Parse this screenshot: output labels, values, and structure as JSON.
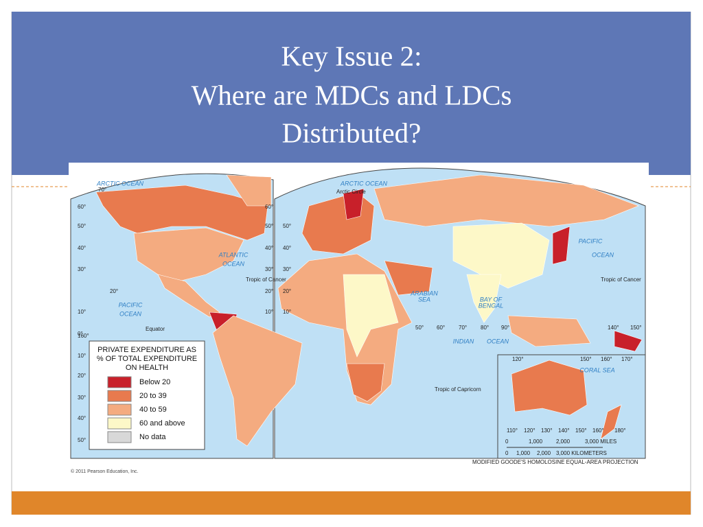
{
  "title": [
    "Key Issue 2:",
    "Where are MDCs and LDCs",
    "Distributed?"
  ],
  "legend": {
    "title": [
      "PRIVATE EXPENDITURE AS",
      "% OF TOTAL EXPENDITURE",
      "ON HEALTH"
    ],
    "items": [
      {
        "label": "Below 20",
        "color": "#c8202a"
      },
      {
        "label": "20 to 39",
        "color": "#e87a4e"
      },
      {
        "label": "40 to 59",
        "color": "#f4ab80"
      },
      {
        "label": "60 and above",
        "color": "#fdf8c8"
      },
      {
        "label": "No data",
        "color": "#d8d8d8"
      }
    ]
  },
  "labels": [
    "ARCTIC OCEAN",
    "ARCTIC OCEAN",
    "Arctic Circle",
    "ATLANTIC",
    "OCEAN",
    "Tropic of Cancer",
    "Tropic of Cancer",
    "PACIFIC",
    "OCEAN",
    "PACIFIC",
    "OCEAN",
    "Equator",
    "ARABIAN",
    "SEA",
    "BAY OF",
    "BENGAL",
    "INDIAN",
    "OCEAN",
    "Tropic of Capricorn",
    "CORAL SEA",
    "60°",
    "50°",
    "40°",
    "30°",
    "20°",
    "10°",
    "0°",
    "10°",
    "20°",
    "30°",
    "40°",
    "50°",
    "60°",
    "50°",
    "40°",
    "30°",
    "20°",
    "10°",
    "50°",
    "40°",
    "30°",
    "20°",
    "10°",
    "50°",
    "60°",
    "70°",
    "80°",
    "90°",
    "140°",
    "150°",
    "120°",
    "150°",
    "160°",
    "170°",
    "110°",
    "120°",
    "130°",
    "140°",
    "150°",
    "160°",
    "180°",
    "160°",
    "70°"
  ],
  "scale": {
    "miles": [
      "0",
      "1,000",
      "2,000",
      "3,000 MILES"
    ],
    "kilometers": [
      "0",
      "1,000",
      "2,000",
      "3,000 KILOMETERS"
    ]
  },
  "projection": "MODIFIED GOODE'S HOMOLOSINE EQUAL-AREA PROJECTION",
  "copyright": "© 2011 Pearson Education, Inc."
}
